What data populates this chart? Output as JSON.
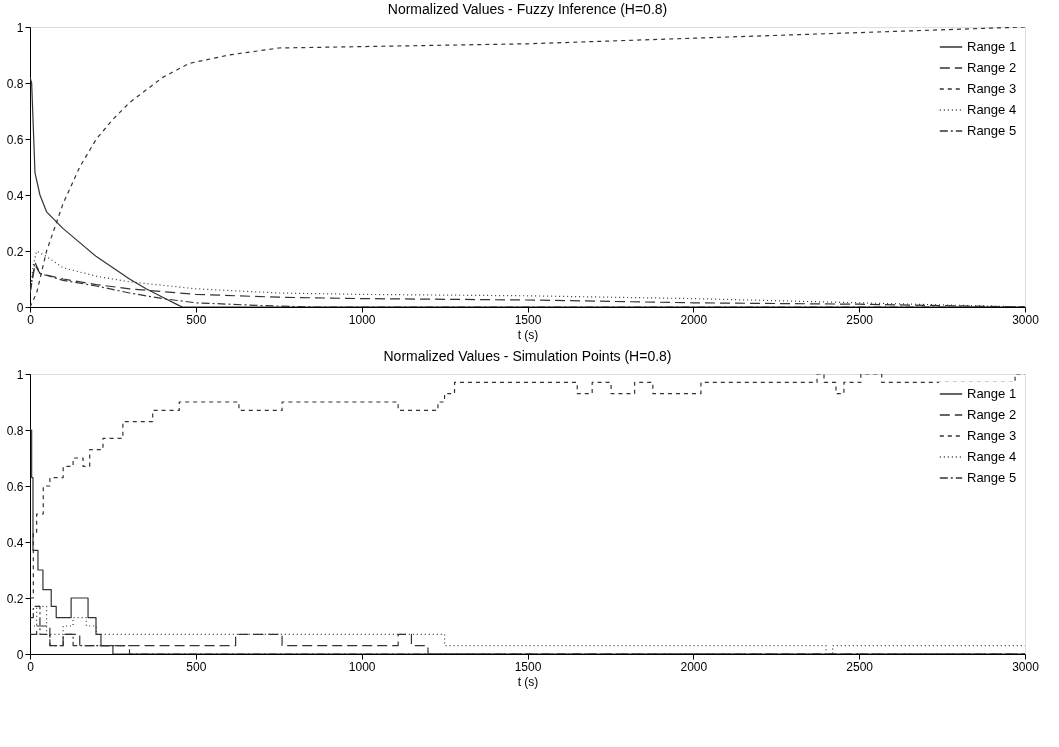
{
  "chart_data": [
    {
      "type": "line",
      "title": "Normalized Values - Fuzzy Inference (H=0.8)",
      "xlabel": "t (s)",
      "xlim": [
        0,
        3000
      ],
      "xticks": [
        0,
        500,
        1000,
        1500,
        2000,
        2500,
        3000
      ],
      "ylim": [
        0,
        1
      ],
      "yticks": [
        0,
        0.2,
        0.4,
        0.6,
        0.8,
        1
      ],
      "legend": "top right",
      "series": [
        {
          "name": "Range 1",
          "color": "#333333",
          "line_style": "solid",
          "x": [
            0,
            5,
            15,
            30,
            50,
            100,
            150,
            200,
            250,
            300,
            350,
            400,
            450,
            460,
            3000
          ],
          "values": [
            0.82,
            0.8,
            0.48,
            0.4,
            0.34,
            0.28,
            0.23,
            0.18,
            0.14,
            0.1,
            0.065,
            0.035,
            0.005,
            0,
            0
          ]
        },
        {
          "name": "Range 2",
          "color": "#333333",
          "line_style": "longdash",
          "x": [
            0,
            15,
            30,
            100,
            200,
            300,
            500,
            750,
            1000,
            1500,
            2000,
            2500,
            3000
          ],
          "values": [
            0.05,
            0.15,
            0.12,
            0.1,
            0.08,
            0.065,
            0.045,
            0.035,
            0.03,
            0.025,
            0.015,
            0.01,
            0
          ]
        },
        {
          "name": "Range 3",
          "color": "#333333",
          "line_style": "dashed",
          "x": [
            0,
            20,
            50,
            100,
            150,
            200,
            250,
            300,
            400,
            480,
            600,
            750,
            1000,
            1500,
            2000,
            2500,
            3000
          ],
          "values": [
            0,
            0.05,
            0.2,
            0.37,
            0.5,
            0.6,
            0.67,
            0.73,
            0.82,
            0.87,
            0.9,
            0.925,
            0.93,
            0.94,
            0.96,
            0.98,
            1
          ]
        },
        {
          "name": "Range 4",
          "color": "#333333",
          "line_style": "dotted",
          "x": [
            0,
            10,
            20,
            50,
            100,
            200,
            300,
            500,
            750,
            1000,
            1500,
            2000,
            2500,
            3000
          ],
          "values": [
            0.05,
            0.15,
            0.2,
            0.18,
            0.14,
            0.11,
            0.09,
            0.065,
            0.05,
            0.045,
            0.04,
            0.03,
            0.015,
            0
          ]
        },
        {
          "name": "Range 5",
          "color": "#333333",
          "line_style": "dashdot",
          "x": [
            0,
            15,
            30,
            100,
            200,
            300,
            400,
            500,
            700,
            850,
            3000
          ],
          "values": [
            0.05,
            0.16,
            0.12,
            0.095,
            0.075,
            0.05,
            0.03,
            0.015,
            0.005,
            0,
            0
          ]
        }
      ]
    },
    {
      "type": "step",
      "title": "Normalized Values - Simulation Points (H=0.8)",
      "xlabel": "t (s)",
      "xlim": [
        0,
        3000
      ],
      "xticks": [
        0,
        500,
        1000,
        1500,
        2000,
        2500,
        3000
      ],
      "ylim": [
        0,
        1
      ],
      "yticks": [
        0,
        0.2,
        0.4,
        0.6,
        0.8,
        1
      ],
      "legend": "top right",
      "series": [
        {
          "name": "Range 1",
          "color": "#333333",
          "line_style": "solid",
          "x": [
            0,
            5,
            9,
            24,
            39,
            64,
            79,
            124,
            175,
            199,
            214,
            250,
            3000
          ],
          "values": [
            0.8,
            0.63,
            0.37,
            0.3,
            0.23,
            0.17,
            0.13,
            0.2,
            0.13,
            0.07,
            0.03,
            0,
            0
          ]
        },
        {
          "name": "Range 2",
          "color": "#333333",
          "line_style": "longdash",
          "x": [
            0,
            20,
            60,
            100,
            150,
            620,
            760,
            1110,
            1150,
            1200,
            3000
          ],
          "values": [
            0.07,
            0.1,
            0.03,
            0.07,
            0.03,
            0.07,
            0.03,
            0.07,
            0.03,
            0,
            0
          ]
        },
        {
          "name": "Range 3",
          "color": "#333333",
          "line_style": "dashed",
          "x": [
            0,
            10,
            20,
            40,
            60,
            100,
            130,
            160,
            180,
            220,
            280,
            370,
            450,
            630,
            760,
            1110,
            1150,
            1230,
            1250,
            1280,
            1650,
            1695,
            1752,
            1823,
            1878,
            1952,
            2023,
            2373,
            2394,
            2430,
            2454,
            2505,
            2568,
            2970,
            3000
          ],
          "values": [
            0.2,
            0.43,
            0.5,
            0.6,
            0.63,
            0.67,
            0.7,
            0.67,
            0.73,
            0.77,
            0.83,
            0.87,
            0.9,
            0.87,
            0.9,
            0.87,
            0.87,
            0.9,
            0.93,
            0.97,
            0.93,
            0.97,
            0.93,
            0.97,
            0.93,
            0.93,
            0.97,
            1,
            0.97,
            0.93,
            0.97,
            1,
            0.97,
            1,
            1
          ]
        },
        {
          "name": "Range 4",
          "color": "#333333",
          "line_style": "dotted",
          "x": [
            0,
            20,
            50,
            100,
            130,
            170,
            200,
            1250,
            2370,
            2400,
            2420,
            2970,
            3000
          ],
          "values": [
            0.1,
            0.17,
            0.07,
            0.1,
            0.13,
            0.1,
            0.07,
            0.03,
            0.03,
            0,
            0.03,
            0.03,
            0.03
          ]
        },
        {
          "name": "Range 5",
          "color": "#333333",
          "line_style": "dashdot",
          "x": [
            0,
            10,
            30,
            60,
            100,
            130,
            300,
            3000
          ],
          "values": [
            0.13,
            0.17,
            0.07,
            0.03,
            0.07,
            0.03,
            0,
            0
          ]
        }
      ]
    }
  ]
}
